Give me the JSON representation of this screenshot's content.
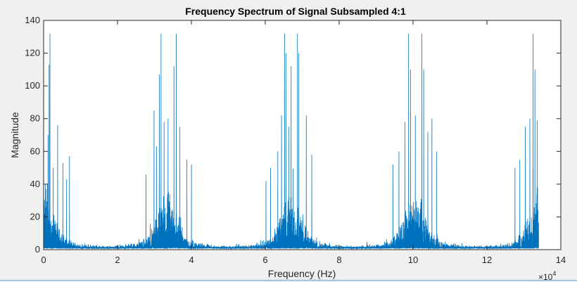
{
  "chart_data": {
    "type": "line",
    "title": "Frequency Spectrum of Signal Subsampled 4:1",
    "xlabel": "Frequency (Hz)",
    "ylabel": "Magnitude",
    "x_exponent_label": "×10",
    "x_exponent_power": "4",
    "xlim": [
      0,
      140000
    ],
    "ylim": [
      0,
      140
    ],
    "x_tick_values": [
      0,
      20000,
      40000,
      60000,
      80000,
      100000,
      120000,
      140000
    ],
    "x_tick_labels": [
      "0",
      "2",
      "4",
      "6",
      "8",
      "10",
      "12",
      "14"
    ],
    "y_tick_values": [
      0,
      20,
      40,
      60,
      80,
      100,
      120,
      140
    ],
    "y_tick_labels": [
      "0",
      "20",
      "40",
      "60",
      "80",
      "100",
      "120",
      "140"
    ],
    "grid": false,
    "x_data_max": 134000,
    "noise_floor_max": 10,
    "peaks": [
      {
        "x": 1700,
        "y": 132
      },
      {
        "x": 1500,
        "y": 113
      },
      {
        "x": 1200,
        "y": 70
      },
      {
        "x": 3800,
        "y": 76
      },
      {
        "x": 2600,
        "y": 50
      },
      {
        "x": 5200,
        "y": 53
      },
      {
        "x": 7000,
        "y": 57
      },
      {
        "x": 6200,
        "y": 43
      },
      {
        "x": 500,
        "y": 40
      },
      {
        "x": 31800,
        "y": 132
      },
      {
        "x": 31300,
        "y": 107
      },
      {
        "x": 35900,
        "y": 132
      },
      {
        "x": 35300,
        "y": 112
      },
      {
        "x": 33700,
        "y": 80
      },
      {
        "x": 32600,
        "y": 78
      },
      {
        "x": 36900,
        "y": 75
      },
      {
        "x": 29900,
        "y": 85
      },
      {
        "x": 30600,
        "y": 63
      },
      {
        "x": 40000,
        "y": 52
      },
      {
        "x": 27700,
        "y": 46
      },
      {
        "x": 38800,
        "y": 55
      },
      {
        "x": 65200,
        "y": 132
      },
      {
        "x": 65600,
        "y": 120
      },
      {
        "x": 68700,
        "y": 132
      },
      {
        "x": 69100,
        "y": 120
      },
      {
        "x": 67000,
        "y": 112
      },
      {
        "x": 64400,
        "y": 82
      },
      {
        "x": 71100,
        "y": 82
      },
      {
        "x": 63400,
        "y": 60
      },
      {
        "x": 66400,
        "y": 75
      },
      {
        "x": 72600,
        "y": 58
      },
      {
        "x": 61400,
        "y": 50
      },
      {
        "x": 60200,
        "y": 42
      },
      {
        "x": 98800,
        "y": 132
      },
      {
        "x": 99300,
        "y": 110
      },
      {
        "x": 102400,
        "y": 132
      },
      {
        "x": 102900,
        "y": 110
      },
      {
        "x": 100600,
        "y": 82
      },
      {
        "x": 97800,
        "y": 78
      },
      {
        "x": 105100,
        "y": 80
      },
      {
        "x": 96200,
        "y": 60
      },
      {
        "x": 106400,
        "y": 60
      },
      {
        "x": 94600,
        "y": 52
      },
      {
        "x": 104000,
        "y": 72
      },
      {
        "x": 132500,
        "y": 132
      },
      {
        "x": 133000,
        "y": 110
      },
      {
        "x": 131600,
        "y": 80
      },
      {
        "x": 130400,
        "y": 75
      },
      {
        "x": 128900,
        "y": 55
      },
      {
        "x": 133600,
        "y": 79
      },
      {
        "x": 127600,
        "y": 50
      }
    ]
  }
}
